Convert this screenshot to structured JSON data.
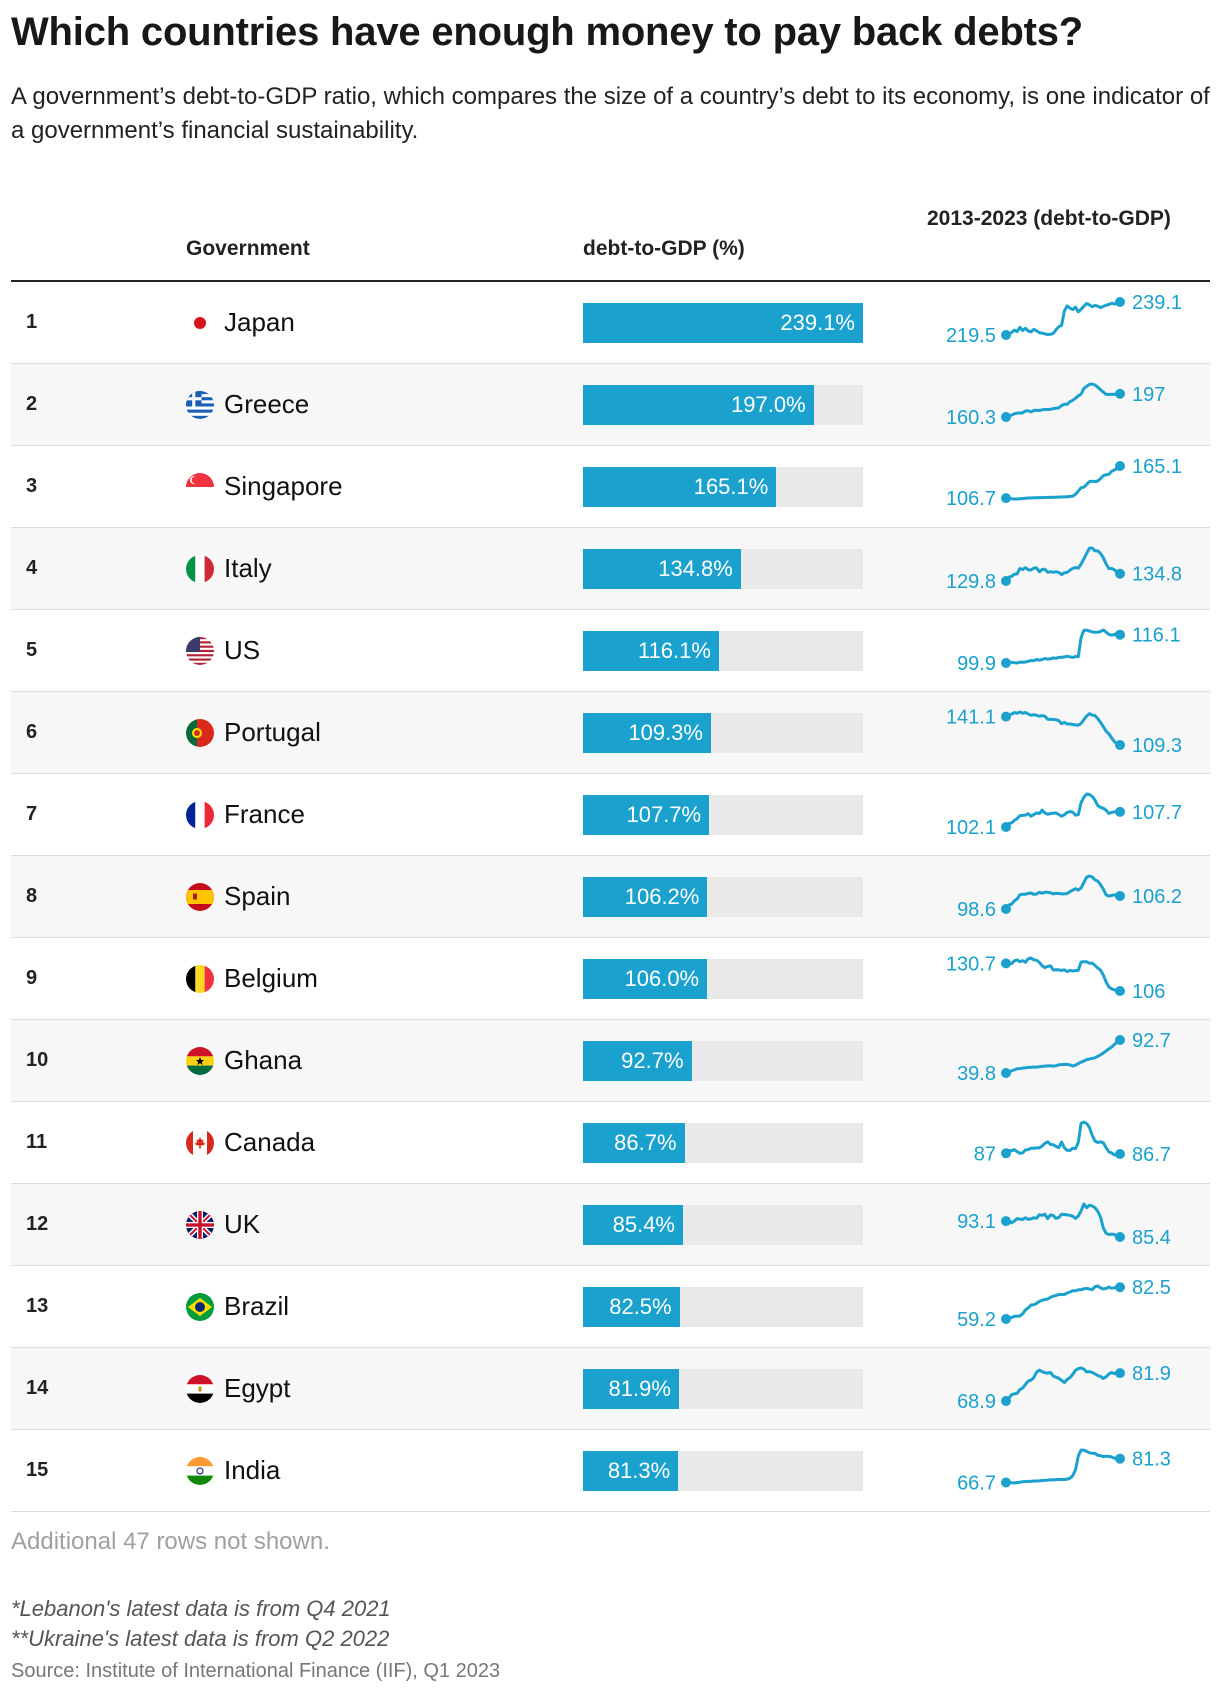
{
  "title": "Which countries have enough money to pay back debts?",
  "subtitle": "A government’s debt-to-GDP ratio, which compares the size of a country’s debt to its economy, is one indicator of a government’s financial sustainability.",
  "headers": {
    "government": "Government",
    "debt": "debt-to-GDP (%)",
    "trend": "2013-2023 (debt-to-GDP)"
  },
  "footer": {
    "more_rows": "Additional 47 rows not shown.",
    "note1": "*Lebanon's latest data is from Q4 2021",
    "note2": "**Ukraine's latest data is from Q2 2022",
    "source": "Source: Institute of International Finance (IIF), Q1 2023"
  },
  "colors": {
    "accent": "#1aa1cd",
    "track": "#e9e9e9"
  },
  "chart_data": {
    "type": "table",
    "bar_max": 239.1,
    "columns": [
      "rank",
      "government",
      "debt-to-GDP (%)",
      "2013-2023 (debt-to-GDP)"
    ],
    "rows": [
      {
        "rank": "1",
        "country": "Japan",
        "flag": "japan-flag-icon",
        "value": 239.1,
        "label": "239.1%",
        "start_label": "219.5",
        "end_label": "239.1",
        "trend": [
          219.5,
          220.2,
          221,
          222.4,
          221.6,
          224.1,
          222.2,
          223.5,
          221.8,
          221.4,
          222.8,
          222,
          220.8,
          220.6,
          220.2,
          219.8,
          219.9,
          220.5,
          222.6,
          224.4,
          225.2,
          233.8,
          236.8,
          235.4,
          234.6,
          236,
          233.3,
          234.8,
          236.6,
          238.2,
          237.4,
          236.3,
          237.1,
          236.6,
          235.8,
          236.5,
          237.2,
          237.6,
          238.4,
          237.9,
          238.3,
          239.1
        ]
      },
      {
        "rank": "2",
        "country": "Greece",
        "flag": "greece-flag-icon",
        "value": 197.0,
        "label": "197.0%",
        "start_label": "160.3",
        "end_label": "197",
        "trend": [
          160.3,
          162.5,
          163.1,
          165.4,
          166.5,
          166.5,
          166.9,
          169.8,
          170.2,
          168.3,
          170.6,
          170.9,
          170.6,
          171.6,
          172.2,
          172.1,
          172.3,
          173.5,
          174,
          174.9,
          178.4,
          180.4,
          180.4,
          184.4,
          186.7,
          189.8,
          193.8,
          196.4,
          205.5,
          208.6,
          211.8,
          212.4,
          210.8,
          207.3,
          203.6,
          199.6,
          196.2,
          195.9,
          196.1,
          196,
          196.4,
          197
        ]
      },
      {
        "rank": "3",
        "country": "Singapore",
        "flag": "singapore-flag-icon",
        "value": 165.1,
        "label": "165.1%",
        "start_label": "106.7",
        "end_label": "165.1",
        "trend": [
          106.7,
          106.1,
          105.5,
          105.1,
          105.1,
          105.7,
          106,
          106.5,
          106.9,
          107,
          107.2,
          107.4,
          107.6,
          107.6,
          107.9,
          108.1,
          108.1,
          108.2,
          108.4,
          108.7,
          108.8,
          108.9,
          109,
          109.8,
          110.2,
          113.6,
          119.5,
          125.6,
          126.5,
          131.7,
          136.8,
          137.5,
          136.7,
          137.8,
          142.2,
          147.2,
          149.2,
          150,
          155.7,
          158.1,
          160.5,
          165.1
        ]
      },
      {
        "rank": "4",
        "country": "Italy",
        "flag": "italy-flag-icon",
        "value": 134.8,
        "label": "134.8%",
        "start_label": "129.8",
        "end_label": "134.8",
        "trend": [
          129.8,
          132.5,
          132.9,
          134.5,
          134.7,
          138.4,
          137.7,
          139,
          137.5,
          137.4,
          138.7,
          138.8,
          136.1,
          137.7,
          137.9,
          135.8,
          136.2,
          135.8,
          136.2,
          135.7,
          134.2,
          135.5,
          135.7,
          137.3,
          138.5,
          139.1,
          138.6,
          141.4,
          145.1,
          148.7,
          152.3,
          152.5,
          150.6,
          150.5,
          148.7,
          145.9,
          141.5,
          138.3,
          138.4,
          137.5,
          135.6,
          134.8
        ]
      },
      {
        "rank": "5",
        "country": "US",
        "flag": "us-flag-icon",
        "value": 116.1,
        "label": "116.1%",
        "start_label": "99.9",
        "end_label": "116.1",
        "trend": [
          99.9,
          100.6,
          100.3,
          100.1,
          99.9,
          100.4,
          100.3,
          100.5,
          100.9,
          101.3,
          101.3,
          101.9,
          101.5,
          101.9,
          102.5,
          102.1,
          102.3,
          102.8,
          102.6,
          103.1,
          103.1,
          103.4,
          103.8,
          103.4,
          103.1,
          103.6,
          103.5,
          114.5,
          118.6,
          118.7,
          118.2,
          117.7,
          117.5,
          117.6,
          117.9,
          118.8,
          117.6,
          116.2,
          115.9,
          116.2,
          116.9,
          116.1
        ]
      },
      {
        "rank": "6",
        "country": "Portugal",
        "flag": "portugal-flag-icon",
        "value": 109.3,
        "label": "109.3%",
        "start_label": "141.1",
        "end_label": "109.3",
        "trend": [
          141.1,
          143.4,
          143.8,
          145.6,
          145,
          146.3,
          144.8,
          145.7,
          144.1,
          142.6,
          143.3,
          142.6,
          141.6,
          142.3,
          141.6,
          138.1,
          138,
          138,
          137.5,
          136.7,
          133.2,
          134.6,
          132.8,
          132.9,
          132.3,
          131.8,
          131.5,
          133.5,
          137.7,
          141.6,
          144.5,
          142.8,
          142.3,
          138.9,
          134.6,
          129.9,
          124.8,
          121.8,
          117.2,
          113.1,
          110.5,
          109.3
        ]
      },
      {
        "rank": "7",
        "country": "France",
        "flag": "france-flag-icon",
        "value": 107.7,
        "label": "107.7%",
        "start_label": "102.1",
        "end_label": "107.7",
        "trend": [
          102.1,
          103.4,
          103.6,
          104.5,
          105.2,
          106.3,
          106.4,
          106.5,
          107,
          106.1,
          106.7,
          107.3,
          107.1,
          108.3,
          107.3,
          106.8,
          107.1,
          107.2,
          107.3,
          106.7,
          106.1,
          106.6,
          107.5,
          107.8,
          107.6,
          106.5,
          106.6,
          111.1,
          113.1,
          114.3,
          114.1,
          113.4,
          112,
          110,
          109.4,
          109,
          108.3,
          107.1,
          107.5,
          107.7,
          107.7,
          107.7
        ]
      },
      {
        "rank": "8",
        "country": "Spain",
        "flag": "spain-flag-icon",
        "value": 106.2,
        "label": "106.2%",
        "start_label": "98.6",
        "end_label": "106.2",
        "trend": [
          98.6,
          100.9,
          101.4,
          103.3,
          104.4,
          106.9,
          107.2,
          107.2,
          107.7,
          107.9,
          107.1,
          107.3,
          108.3,
          107.8,
          108.3,
          108.3,
          108,
          107.4,
          107.8,
          107.6,
          107.4,
          107.4,
          107.6,
          108.7,
          109.6,
          110.4,
          109.6,
          110.9,
          114.1,
          117.1,
          117.8,
          117.3,
          115.6,
          114.8,
          112.8,
          110.2,
          106.8,
          106.1,
          106.5,
          106.8,
          106.4,
          106.2
        ]
      },
      {
        "rank": "9",
        "country": "Belgium",
        "flag": "belgium-flag-icon",
        "value": 106.0,
        "label": "106.0%",
        "start_label": "130.7",
        "end_label": "106",
        "trend": [
          130.7,
          130.7,
          130.5,
          132.9,
          133.8,
          132.1,
          133.2,
          131.7,
          134.9,
          135.5,
          133.8,
          133.4,
          131.6,
          128.6,
          126.8,
          128.1,
          128.4,
          124.8,
          125,
          124.9,
          124.4,
          124.9,
          123.3,
          124.4,
          123.9,
          124.2,
          124.4,
          131.9,
          132.2,
          132.1,
          130.8,
          130.9,
          128.9,
          126.5,
          124.7,
          120.1,
          114.2,
          109.6,
          107.9,
          107.1,
          106.2,
          106
        ]
      },
      {
        "rank": "10",
        "country": "Ghana",
        "flag": "ghana-flag-icon",
        "value": 92.7,
        "label": "92.7%",
        "start_label": "39.8",
        "end_label": "92.7",
        "trend": [
          39.8,
          41.7,
          43.2,
          44.8,
          46.5,
          46.8,
          47.7,
          48.1,
          48.8,
          48.7,
          49.4,
          49.2,
          49.9,
          50.4,
          50.8,
          51.2,
          51.4,
          50.9,
          51.5,
          53,
          53.2,
          53.6,
          53.5,
          52.8,
          51.1,
          52.3,
          54.9,
          57.3,
          58.8,
          61.3,
          62.1,
          63.3,
          64.1,
          66.5,
          68.9,
          71.9,
          75.3,
          78.4,
          81.4,
          85.6,
          89.2,
          92.7
        ]
      },
      {
        "rank": "11",
        "country": "Canada",
        "flag": "canada-flag-icon",
        "value": 86.7,
        "label": "86.7%",
        "start_label": "87",
        "end_label": "86.7",
        "trend": [
          87,
          88.2,
          88,
          88.5,
          87.7,
          87,
          87.2,
          88.4,
          88.5,
          89.1,
          89.1,
          89.2,
          89.2,
          90,
          91.1,
          91.7,
          90.6,
          90.5,
          89.8,
          89.3,
          91.6,
          89.2,
          88.2,
          88.2,
          89.1,
          88.9,
          91.5,
          99.3,
          99.8,
          99.2,
          97.6,
          94.4,
          92,
          91.4,
          91.7,
          91.3,
          89.3,
          87.6,
          87.1,
          86.3,
          86.7,
          86.7
        ]
      },
      {
        "rank": "12",
        "country": "UK",
        "flag": "uk-flag-icon",
        "value": 85.4,
        "label": "85.4%",
        "start_label": "93.1",
        "end_label": "85.4",
        "trend": [
          93.1,
          93.3,
          92.3,
          93.1,
          94.3,
          94.1,
          93.9,
          94.7,
          94,
          94.2,
          94.7,
          94.5,
          96.2,
          95.9,
          96.4,
          94.3,
          96.1,
          95.8,
          94.4,
          94.9,
          96.4,
          96.3,
          96.1,
          95.9,
          95.5,
          94.4,
          95.6,
          98.1,
          101.4,
          99.6,
          100.8,
          100.5,
          99.6,
          97.8,
          95.1,
          89.8,
          87.2,
          86.6,
          86.8,
          86.6,
          85.7,
          85.4
        ]
      },
      {
        "rank": "13",
        "country": "Brazil",
        "flag": "brazil-flag-icon",
        "value": 82.5,
        "label": "82.5%",
        "start_label": "59.2",
        "end_label": "82.5",
        "trend": [
          59.2,
          60.6,
          60.2,
          61.2,
          61.3,
          61.3,
          63.1,
          65.9,
          67.3,
          69.5,
          69.6,
          70.7,
          72.1,
          72.9,
          73.5,
          73.9,
          75.1,
          76,
          76.4,
          77.2,
          77.2,
          77.2,
          78.3,
          79,
          79.9,
          79.9,
          80.6,
          80.6,
          81.4,
          81.6,
          81.3,
          80.7,
          82.9,
          83.4,
          82,
          81.3,
          81.6,
          82.7,
          81.8,
          82.1,
          82.4,
          82.5
        ]
      },
      {
        "rank": "14",
        "country": "Egypt",
        "flag": "egypt-flag-icon",
        "value": 81.9,
        "label": "81.9%",
        "start_label": "68.9",
        "end_label": "81.9",
        "trend": [
          68.9,
          70.1,
          71.9,
          72.2,
          72.5,
          74.2,
          75,
          76.7,
          78.2,
          78.6,
          79.8,
          82.4,
          83.3,
          82.6,
          82.1,
          81.9,
          82.2,
          80.5,
          80,
          79.5,
          78.5,
          77.5,
          79,
          79.8,
          81.3,
          83.2,
          84,
          84.3,
          83.8,
          82.5,
          82.6,
          82.2,
          81.6,
          80.8,
          80.4,
          79.4,
          80.2,
          81.5,
          82.2,
          81.7,
          81.9,
          81.9
        ]
      },
      {
        "rank": "15",
        "country": "India",
        "flag": "india-flag-icon",
        "value": 81.3,
        "label": "81.3%",
        "start_label": "66.7",
        "end_label": "81.3",
        "trend": [
          66.7,
          67,
          66.5,
          66.4,
          66.7,
          66.9,
          67.2,
          67.3,
          67.4,
          67.4,
          67.6,
          67.6,
          67.7,
          67.9,
          68.1,
          68.2,
          68.3,
          68.3,
          68.5,
          68.6,
          68.5,
          68.6,
          68.7,
          69.4,
          70.8,
          74.5,
          82.9,
          86.6,
          86.5,
          85.8,
          84.9,
          84.6,
          84.5,
          83.3,
          83.2,
          82.5,
          82.8,
          82.7,
          82.3,
          81.5,
          81.5,
          81.3
        ]
      }
    ]
  }
}
